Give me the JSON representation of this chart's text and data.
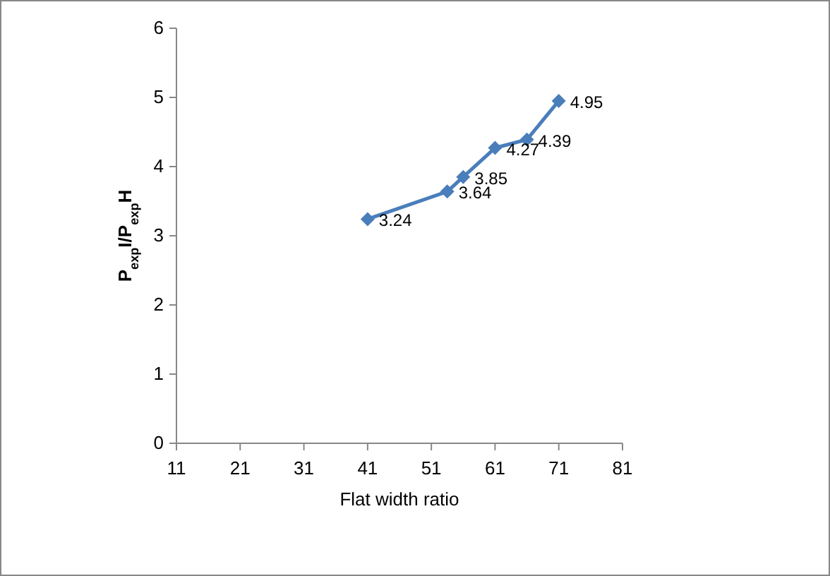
{
  "chart_data": {
    "type": "line",
    "xlabel": "Flat width ratio",
    "ylabel": "P$_{exp}$I/P$_{exp}$H",
    "x": [
      41,
      53.5,
      56,
      61,
      66,
      71
    ],
    "series": [
      {
        "color": "#4a7ebb",
        "values": [
          3.24,
          3.64,
          3.85,
          4.27,
          4.39,
          4.95
        ]
      }
    ],
    "xlim": [
      11,
      81
    ],
    "xticks": [
      11,
      21,
      31,
      41,
      51,
      61,
      71,
      81
    ],
    "ylim": [
      0,
      6
    ],
    "yticks": [
      0,
      1,
      2,
      3,
      4,
      5,
      6
    ],
    "data_labels": true,
    "marker": "diamond",
    "line_style": "solid",
    "grid": false
  }
}
